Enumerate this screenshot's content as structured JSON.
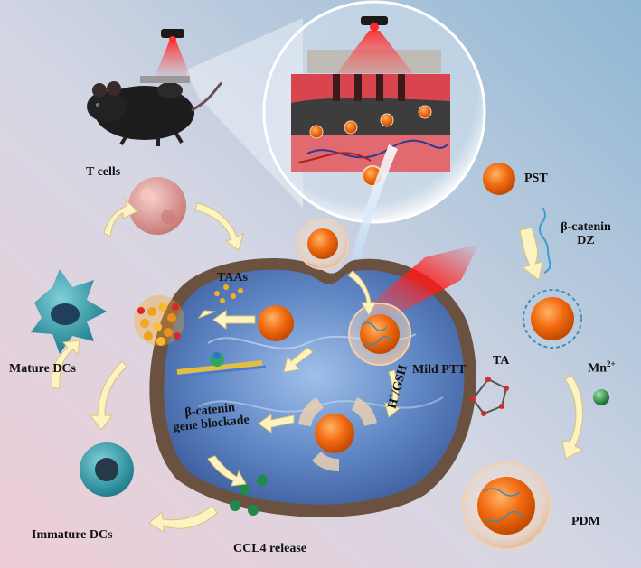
{
  "labels": {
    "t_cells": "T cells",
    "pst": "PST",
    "dz_line1": "β-catenin",
    "dz_line2": "DZ",
    "taas": "TAAs",
    "mature_dcs": "Mature DCs",
    "mild_ptt": "Mild PTT",
    "ta": "TA",
    "mn_base": "Mn",
    "mn_sup": "2+",
    "h_base": "H",
    "h_sup": "+",
    "gsh": "/GSH",
    "blockade_line1": "β-catenin",
    "blockade_line2": "gene blockade",
    "immature_dcs": "Immature DCs",
    "pdm": "PDM",
    "ccl4": "CCL4 release"
  },
  "colors": {
    "background_left": "#e7c9d4",
    "background_right": "#8fb6d3",
    "cell_membrane": "#6b5240",
    "cytoplasm": "#4f74b4",
    "nanoparticle": "#f26a10",
    "arrow_fill": "#fdf3c0",
    "laser_red": "#e01a1a",
    "mn_ion": "#1e8f3a",
    "t_cell": "#e8a3a0",
    "dc_cell": "#3aa8b8"
  },
  "icons": [
    "mouse-icon",
    "laser-emitter-icon",
    "skin-tissue-icon",
    "dna-strand-icon",
    "tannic-acid-molecule-icon",
    "mn-ion-icon",
    "dna-zyme-icon"
  ]
}
